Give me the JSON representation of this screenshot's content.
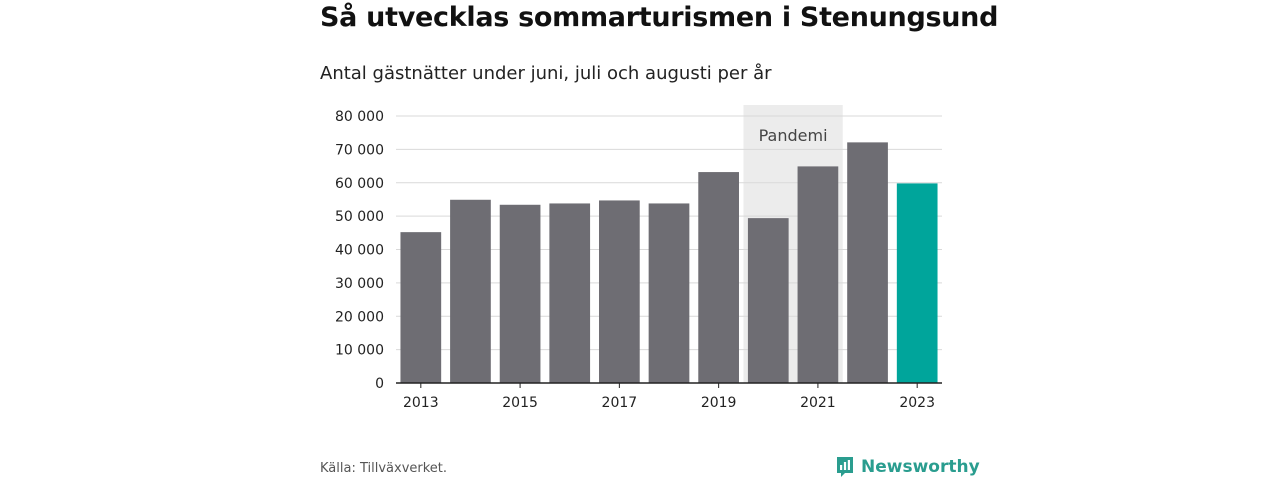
{
  "header": {
    "title": "Så utvecklas sommarturismen i Stenungsund",
    "subtitle": "Antal gästnätter under juni, juli och augusti per år"
  },
  "footer": {
    "source": "Källa: Tillväxverket.",
    "brand": "Newsworthy"
  },
  "icons": {
    "brand": "newsworthy-logo-icon"
  },
  "colors": {
    "bar": "#6e6d73",
    "highlight": "#00a59b",
    "shade": "#ececec",
    "grid": "#d9d9d9",
    "axis": "#222222",
    "brand": "#2a9d8f"
  },
  "chart_data": {
    "type": "bar",
    "title": "Så utvecklas sommarturismen i Stenungsund",
    "subtitle": "Antal gästnätter under juni, juli och augusti per år",
    "xlabel": "",
    "ylabel": "",
    "categories": [
      "2013",
      "2014",
      "2015",
      "2016",
      "2017",
      "2018",
      "2019",
      "2020",
      "2021",
      "2022",
      "2023"
    ],
    "values": [
      45200,
      54900,
      53400,
      53800,
      54700,
      53800,
      63200,
      49400,
      64900,
      72100,
      59800
    ],
    "highlight_category": "2023",
    "ylim": [
      0,
      80000
    ],
    "yticks": [
      0,
      10000,
      20000,
      30000,
      40000,
      50000,
      60000,
      70000,
      80000
    ],
    "ytick_labels": [
      "0",
      "10 000",
      "20 000",
      "30 000",
      "40 000",
      "50 000",
      "60 000",
      "70 000",
      "80 000"
    ],
    "xtick_labels": [
      "2013",
      "2015",
      "2017",
      "2019",
      "2021",
      "2023"
    ],
    "grid": true,
    "legend": "none",
    "annotations": [
      {
        "type": "shaded-region",
        "label": "Pandemi",
        "from": "2020",
        "to": "2021"
      }
    ]
  }
}
